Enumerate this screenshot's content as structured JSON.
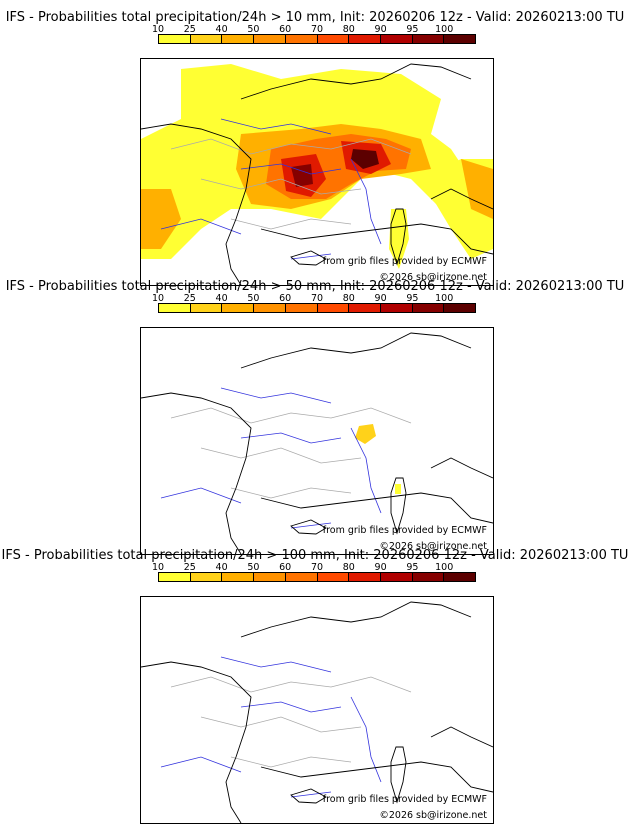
{
  "palette": {
    "scale": [
      "#ffff33",
      "#ffd21a",
      "#ffb000",
      "#ff9200",
      "#ff7300",
      "#ff4a00",
      "#e01a00",
      "#b00000",
      "#850000",
      "#5c0000"
    ],
    "coast": "#000000",
    "rivers": "#3333dd",
    "borders": "#aaaaaa"
  },
  "colorbar_ticks": [
    "10",
    "25",
    "40",
    "50",
    "60",
    "70",
    "80",
    "90",
    "95",
    "100"
  ],
  "credits": {
    "source": "from grib files provided by ECMWF",
    "copyright": "©2026 sb@irizone.net"
  },
  "panels": [
    {
      "title": "IFS - Probabilities total precipitation/24h > 10 mm, Init: 20260206 12z - Valid: 20260213:00 TU",
      "threshold": "10 mm",
      "regions": "extensive"
    },
    {
      "title": "IFS - Probabilities total precipitation/24h > 50 mm, Init: 20260206 12z - Valid: 20260213:00 TU",
      "threshold": "50 mm",
      "regions": "minimal"
    },
    {
      "title": "IFS - Probabilities total precipitation/24h > 100 mm, Init: 20260206 12z - Valid: 20260213:00 TU",
      "threshold": "100 mm",
      "regions": "none"
    }
  ]
}
